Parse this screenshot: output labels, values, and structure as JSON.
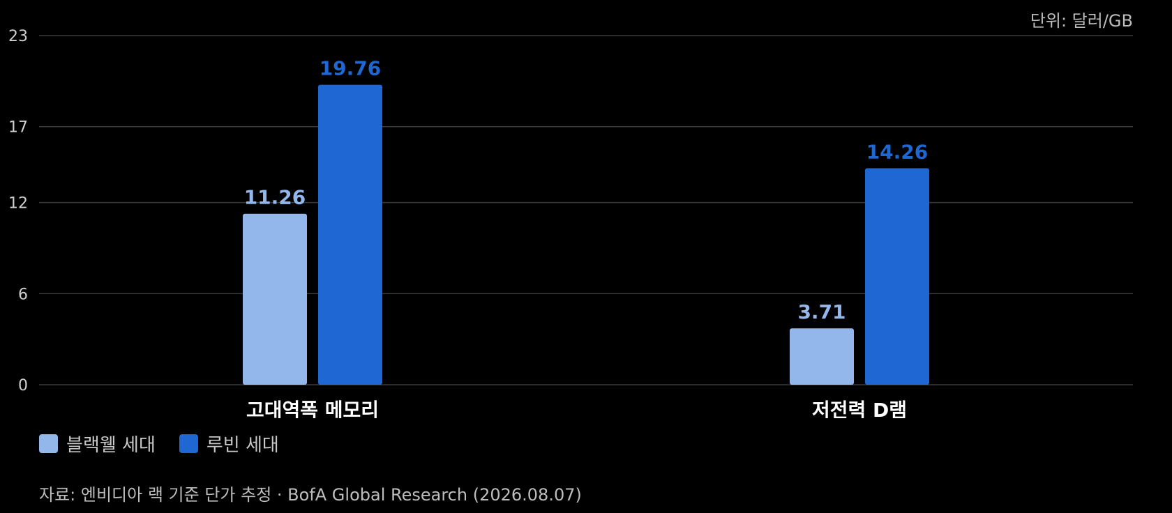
{
  "unit_text": "단위: 달러/GB",
  "source_text": "자료: 엔비디아 랙 기준 단가 추정 · BofA Global Research (2026.08.07)",
  "colors": {
    "background": "#000000",
    "gridline": "#3a3a3a",
    "series_light": "#93b7ea",
    "series_dark": "#1f67d2"
  },
  "chart_data": {
    "type": "bar",
    "categories": [
      "고대역폭 메모리",
      "저전력 D램"
    ],
    "series": [
      {
        "name": "블랙웰 세대",
        "values": [
          11.26,
          3.71
        ],
        "color": "#93b7ea"
      },
      {
        "name": "루빈 세대",
        "values": [
          19.76,
          14.26
        ],
        "color": "#1f67d2"
      }
    ],
    "yticks": [
      0,
      6,
      12,
      17,
      23
    ],
    "ylim": [
      0,
      23
    ],
    "grid": true,
    "legend_position": "bottom-left",
    "unit": "단위: 달러/GB"
  }
}
